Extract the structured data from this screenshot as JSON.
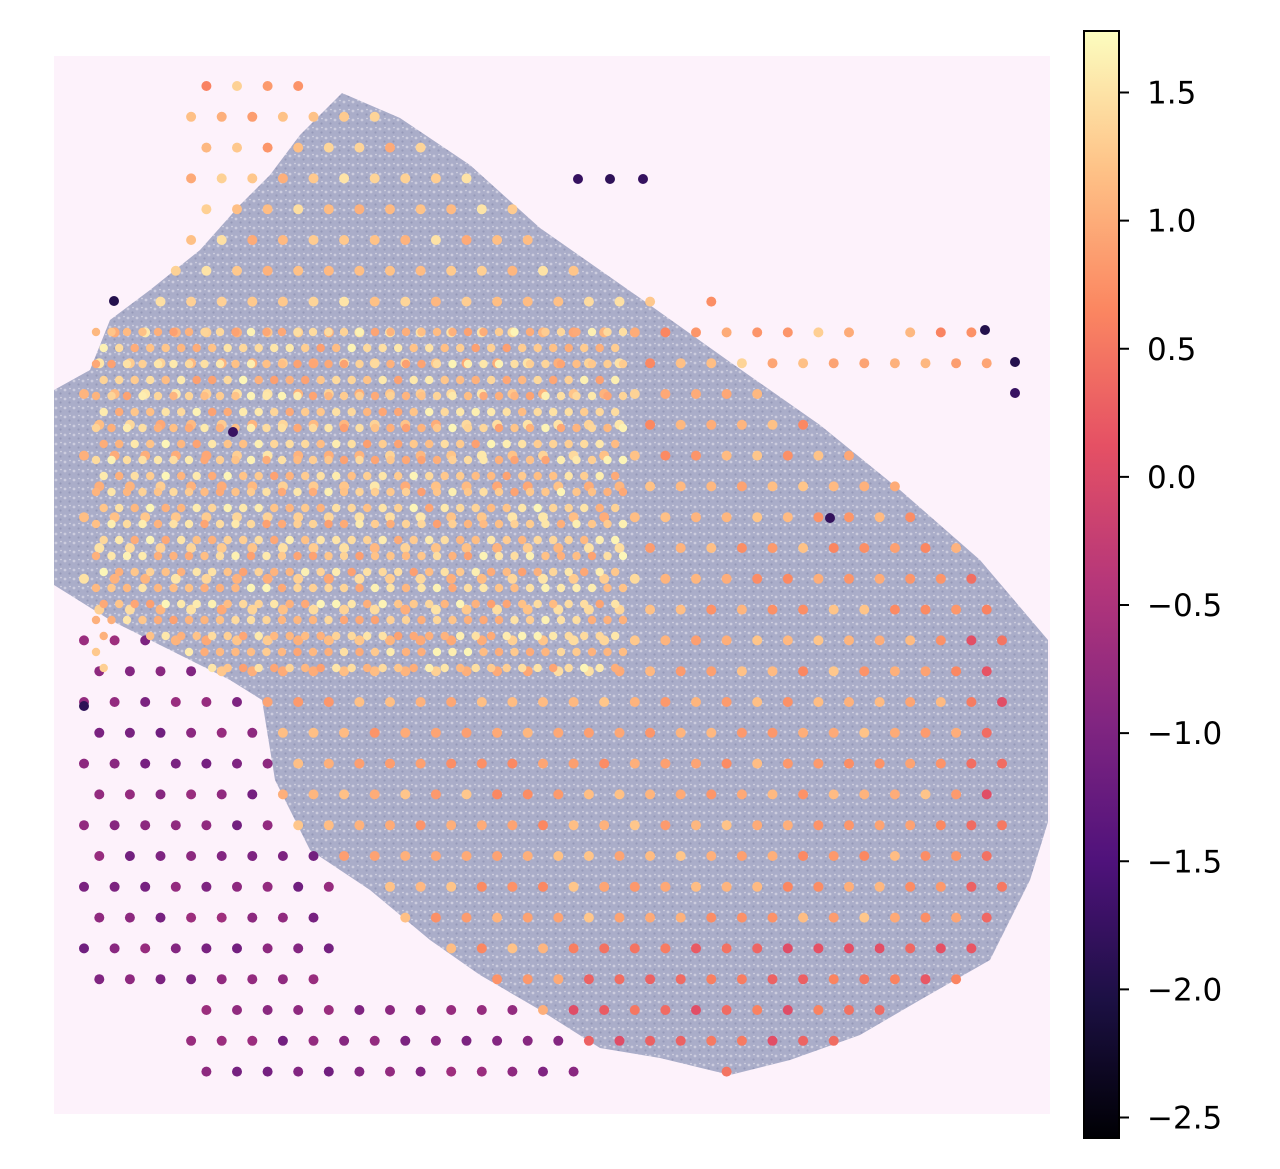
{
  "chart_data": {
    "type": "scatter",
    "title": "",
    "xlabel": "",
    "ylabel": "",
    "axes_visible": false,
    "background": "tissue histology image (H&E-stained section, shown faded lavender-grey)",
    "colormap": "magma",
    "colorbar": {
      "position": "right",
      "range": [
        -2.58,
        1.74
      ],
      "ticks": [
        1.5,
        1.0,
        0.5,
        0.0,
        -0.5,
        -1.0,
        -1.5,
        -2.0,
        -2.5
      ],
      "tick_labels": [
        "1.5",
        "1.0",
        "0.5",
        "0.0",
        "−0.5",
        "−1.0",
        "−1.5",
        "−2.0",
        "−2.5"
      ]
    },
    "series": [
      {
        "grid": "hexagonal spot array",
        "value_summary": "spots over the upper-left tissue region mostly high (~1.0-1.5); lower-right tissue region mostly ~0.6-1.2 with lower values (~0.2-0.4) along the right and bottom edges; spots off-tissue at the lower-left mostly low (~-0.8 to -1.1); a few isolated very low spots (~-1.8 to -2.0) at the top-right and left edges"
      }
    ]
  }
}
